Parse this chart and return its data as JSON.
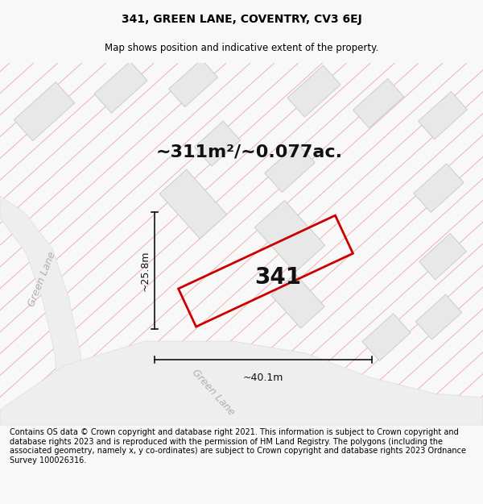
{
  "title_line1": "341, GREEN LANE, COVENTRY, CV3 6EJ",
  "title_line2": "Map shows position and indicative extent of the property.",
  "area_text": "~311m²/~0.077ac.",
  "label_341": "341",
  "dim_height": "~25.8m",
  "dim_width": "~40.1m",
  "road_label_left": "Green Lane",
  "road_label_bottom": "Green Lane",
  "copyright_text": "Contains OS data © Crown copyright and database right 2021. This information is subject to Crown copyright and database rights 2023 and is reproduced with the permission of HM Land Registry. The polygons (including the associated geometry, namely x, y co-ordinates) are subject to Crown copyright and database rights 2023 Ordnance Survey 100026316.",
  "bg_color": "#f8f8f8",
  "map_bg": "#ffffff",
  "road_fill": "#eeeeee",
  "building_fill": "#e8e8e8",
  "building_edge": "#cccccc",
  "hatch_color": "#f0b0b0",
  "property_color": "#cc0000",
  "arrow_color": "#111111",
  "title_fontsize": 10,
  "subtitle_fontsize": 8.5,
  "area_fontsize": 16,
  "label_fontsize": 20,
  "dim_fontsize": 9,
  "road_fontsize": 9,
  "copyright_fontsize": 7
}
